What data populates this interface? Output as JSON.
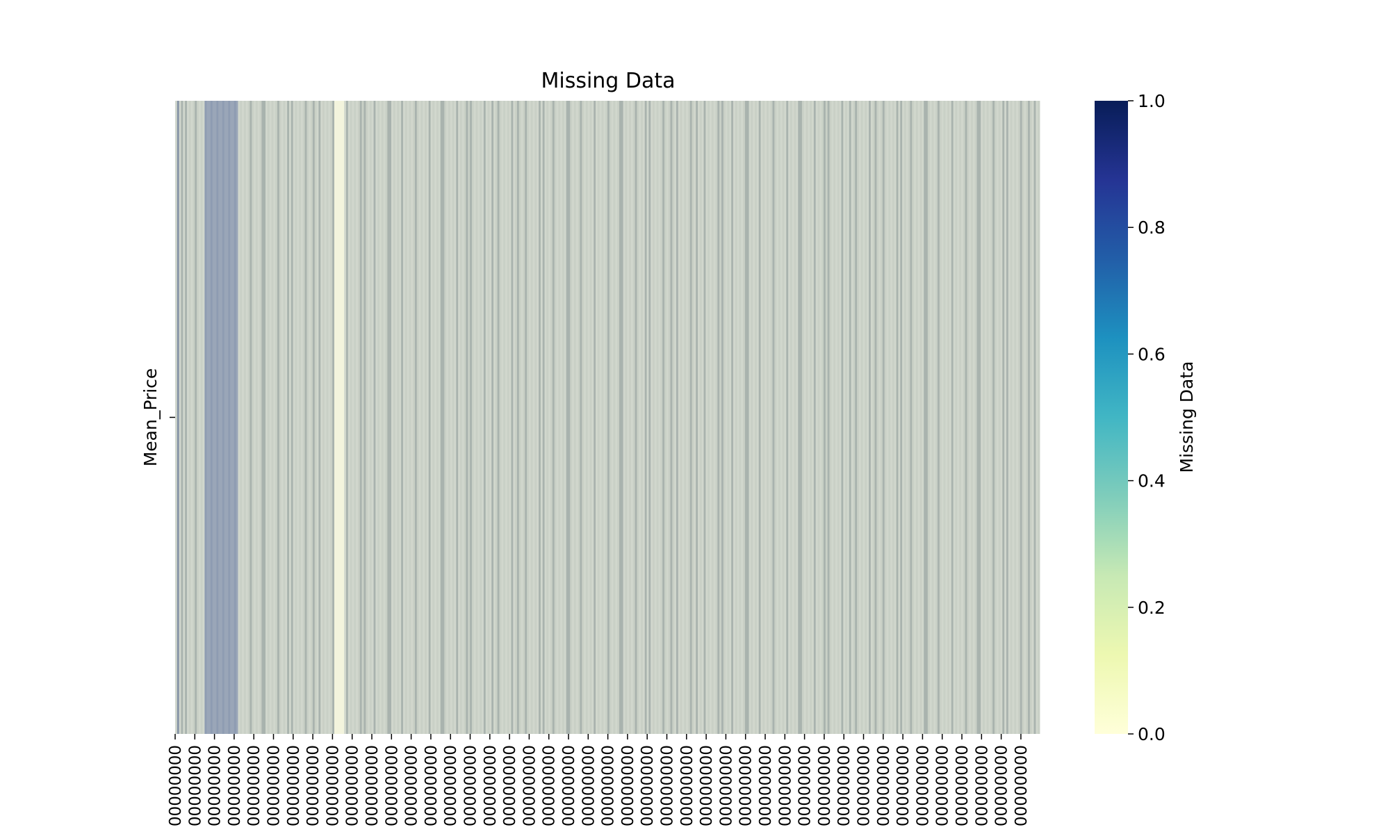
{
  "chart_data": {
    "type": "heatmap",
    "title": "Missing Data",
    "ylabel": "",
    "xlabel": "",
    "row_labels": [
      "Mean_Price"
    ],
    "x_tick_labels": [
      "00000000",
      "00000000",
      "00000000",
      "00000000",
      "00000000",
      "00000000",
      "00000000",
      "00000000",
      "00000000",
      "00000000",
      "00000000",
      "00000000",
      "00000000",
      "00000000",
      "00000000",
      "00000000",
      "00000000",
      "00000000",
      "00000000",
      "00000000",
      "00000000",
      "00000000",
      "00000000",
      "00000000",
      "00000000",
      "00000000",
      "00000000",
      "00000000",
      "00000000",
      "00000000",
      "00000000",
      "00000000",
      "00000000",
      "00000000",
      "00000000",
      "00000000",
      "00000000",
      "00000000",
      "00000000",
      "00000000",
      "00000000",
      "00000000",
      "00000000",
      "00000000"
    ],
    "column_count": 440,
    "missing_value_note": "mostly low (pale greyish-green) with a dense dark-blue band of missing values near the start and a pale yellow band of non-missing values",
    "colorbar": {
      "label": "Missing Data",
      "ticks": [
        "0.0",
        "0.2",
        "0.4",
        "0.6",
        "0.8",
        "1.0"
      ],
      "range": [
        0,
        1
      ],
      "colormap": "YlGnBu",
      "colors": [
        "#ffffd9",
        "#edf8b1",
        "#c7e9b4",
        "#7fcdbb",
        "#41b6c4",
        "#1d91c0",
        "#225ea8",
        "#253494",
        "#081d58"
      ]
    },
    "cell_colors": {
      "present": "#d1d7cd",
      "present_alt": "#c9d0c6",
      "missing_thin": "#a9b3ae",
      "missing_band": "#9aa6b8",
      "light_band": "#f3f4dd"
    }
  }
}
